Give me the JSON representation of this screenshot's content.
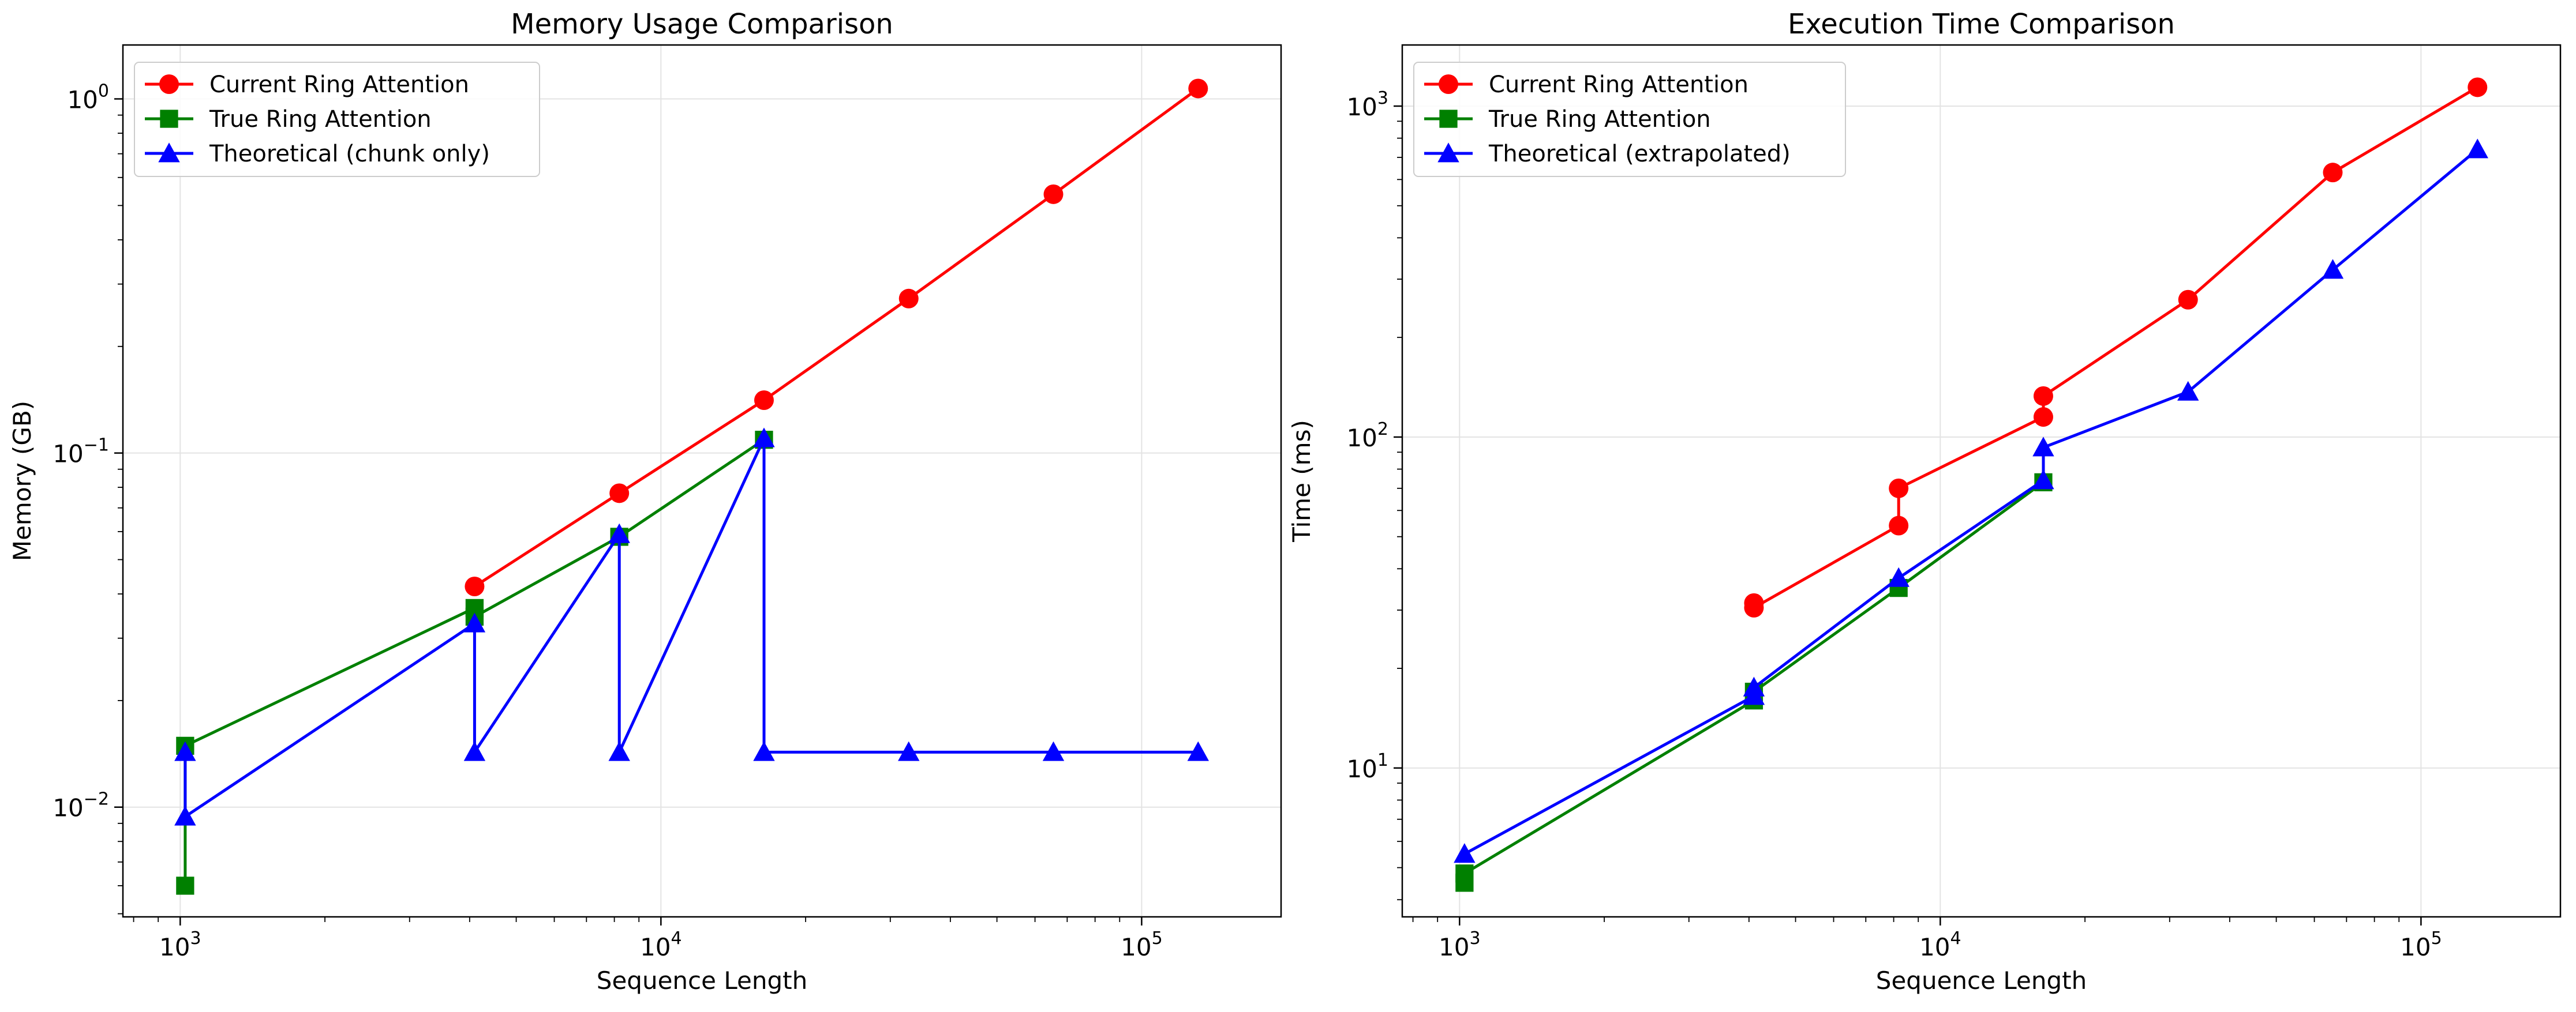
{
  "chart_data": [
    {
      "type": "line",
      "title": "Memory Usage Comparison",
      "xlabel": "Sequence Length",
      "ylabel": "Memory (GB)",
      "xscale": "log",
      "yscale": "log",
      "xlim": [
        760,
        195000
      ],
      "ylim": [
        0.0049,
        1.42
      ],
      "xticks": [
        {
          "base": "10",
          "exp": "3",
          "value": 1000
        },
        {
          "base": "10",
          "exp": "4",
          "value": 10000
        },
        {
          "base": "10",
          "exp": "5",
          "value": 100000
        }
      ],
      "yticks": [
        {
          "base": "10",
          "exp": "−2",
          "value": 0.01
        },
        {
          "base": "10",
          "exp": "−1",
          "value": 0.1
        },
        {
          "base": "10",
          "exp": "0",
          "value": 1
        }
      ],
      "grid": true,
      "legend": "upper left",
      "series": [
        {
          "name": "Current Ring Attention",
          "color": "#ff0000",
          "marker": "circle",
          "x": [
            4096,
            8192,
            16384,
            32768,
            65536,
            131072
          ],
          "y": [
            0.042,
            0.077,
            0.141,
            0.273,
            0.538,
            1.07
          ]
        },
        {
          "name": "True Ring Attention",
          "color": "#008000",
          "marker": "square",
          "x": [
            1024,
            1024,
            4096,
            4096,
            8192,
            16384
          ],
          "y": [
            0.006,
            0.0149,
            0.0365,
            0.0345,
            0.058,
            0.109
          ]
        },
        {
          "name": "Theoretical (chunk only)",
          "color": "#0000ff",
          "marker": "triangle",
          "x": [
            1024,
            1024,
            4096,
            4096,
            8192,
            8192,
            16384,
            16384,
            32768,
            65536,
            131072
          ],
          "y": [
            0.0143,
            0.0094,
            0.033,
            0.0143,
            0.059,
            0.0143,
            0.11,
            0.0143,
            0.0143,
            0.0143,
            0.0143
          ]
        }
      ]
    },
    {
      "type": "line",
      "title": "Execution Time Comparison",
      "xlabel": "Sequence Length",
      "ylabel": "Time (ms)",
      "xscale": "log",
      "yscale": "log",
      "xlim": [
        760,
        195000
      ],
      "ylim": [
        3.55,
        1530
      ],
      "xticks": [
        {
          "base": "10",
          "exp": "3",
          "value": 1000
        },
        {
          "base": "10",
          "exp": "4",
          "value": 10000
        },
        {
          "base": "10",
          "exp": "5",
          "value": 100000
        }
      ],
      "yticks": [
        {
          "base": "10",
          "exp": "1",
          "value": 10
        },
        {
          "base": "10",
          "exp": "2",
          "value": 100
        },
        {
          "base": "10",
          "exp": "3",
          "value": 1000
        }
      ],
      "grid": true,
      "legend": "upper left",
      "series": [
        {
          "name": "Current Ring Attention",
          "color": "#ff0000",
          "marker": "circle",
          "x": [
            4096,
            4096,
            8192,
            8192,
            16384,
            16384,
            32768,
            65536,
            131072
          ],
          "y": [
            31.5,
            30.5,
            54,
            70,
            115,
            133,
            260,
            630,
            1140
          ]
        },
        {
          "name": "True Ring Attention",
          "color": "#008000",
          "marker": "square",
          "x": [
            1024,
            1024,
            4096,
            4096,
            8192,
            16384
          ],
          "y": [
            4.5,
            4.8,
            16.0,
            17.0,
            35.0,
            73.0
          ]
        },
        {
          "name": "Theoretical (extrapolated)",
          "color": "#0000ff",
          "marker": "triangle",
          "x": [
            1024,
            4096,
            4096,
            8192,
            16384,
            16384,
            32768,
            65536,
            131072
          ],
          "y": [
            5.5,
            16.5,
            17.5,
            37.5,
            74,
            93,
            137,
            320,
            740
          ]
        }
      ]
    }
  ]
}
